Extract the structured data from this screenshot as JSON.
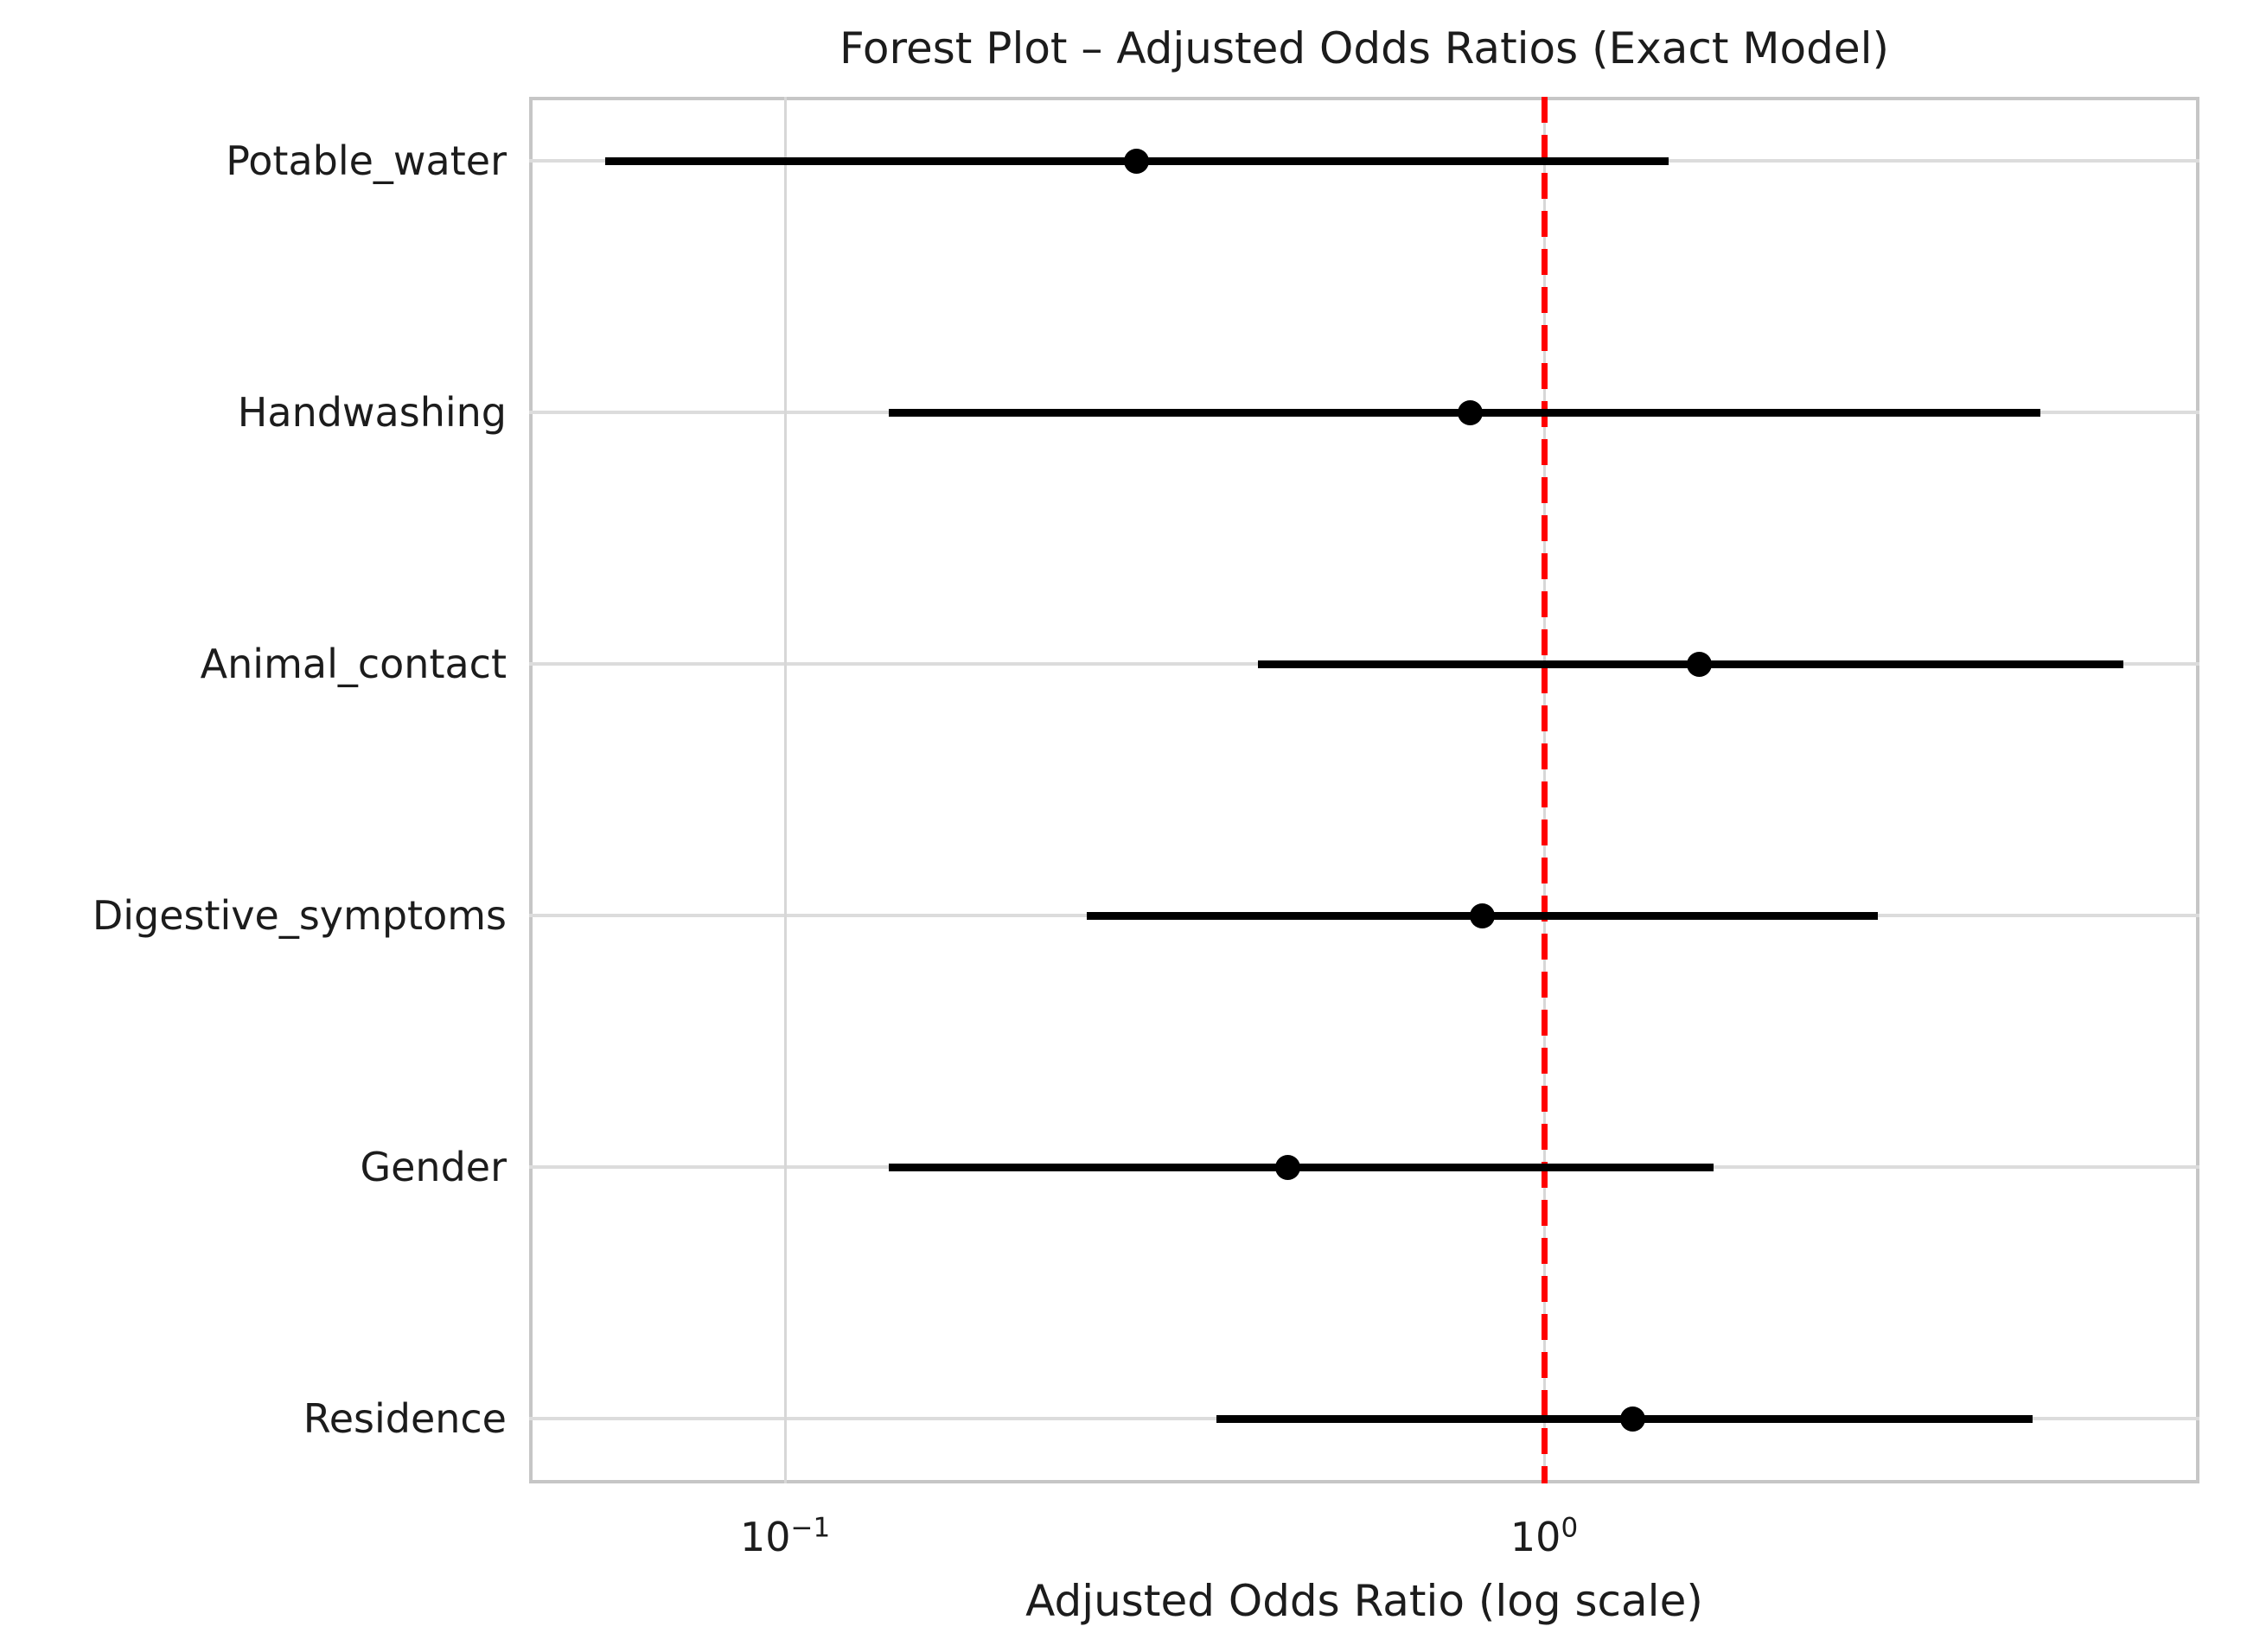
{
  "chart_data": {
    "type": "scatter",
    "variant": "forest-plot",
    "title": "Forest Plot – Adjusted Odds Ratios (Exact Model)",
    "xlabel": "Adjusted Odds Ratio (log scale)",
    "ylabel": "",
    "x_scale": "log",
    "xlim": [
      0.046,
      7.3
    ],
    "grid": true,
    "legend": "none",
    "x_ticks": [
      {
        "value": 0.1,
        "base": "10",
        "exponent": "−1"
      },
      {
        "value": 1.0,
        "base": "10",
        "exponent": "0"
      }
    ],
    "reference_line": {
      "value": 1.0,
      "style": "dashed",
      "color": "#ff0000"
    },
    "categories": [
      "Potable_water",
      "Handwashing",
      "Animal_contact",
      "Digestive_symptoms",
      "Gender",
      "Residence"
    ],
    "rows": [
      {
        "label": "Potable_water",
        "or": 0.29,
        "ci_low": 0.058,
        "ci_high": 1.46
      },
      {
        "label": "Handwashing",
        "or": 0.8,
        "ci_low": 0.137,
        "ci_high": 4.5
      },
      {
        "label": "Animal_contact",
        "or": 1.6,
        "ci_low": 0.42,
        "ci_high": 5.8
      },
      {
        "label": "Digestive_symptoms",
        "or": 0.83,
        "ci_low": 0.25,
        "ci_high": 2.75
      },
      {
        "label": "Gender",
        "or": 0.46,
        "ci_low": 0.137,
        "ci_high": 1.67
      },
      {
        "label": "Residence",
        "or": 1.31,
        "ci_low": 0.37,
        "ci_high": 4.4
      }
    ],
    "style": {
      "marker_color": "#000000",
      "ci_color": "#000000",
      "grid_color": "#d7d7d7",
      "frame_color": "#c6c6c6",
      "text_color": "#1c1c1c",
      "background": "#ffffff"
    }
  }
}
